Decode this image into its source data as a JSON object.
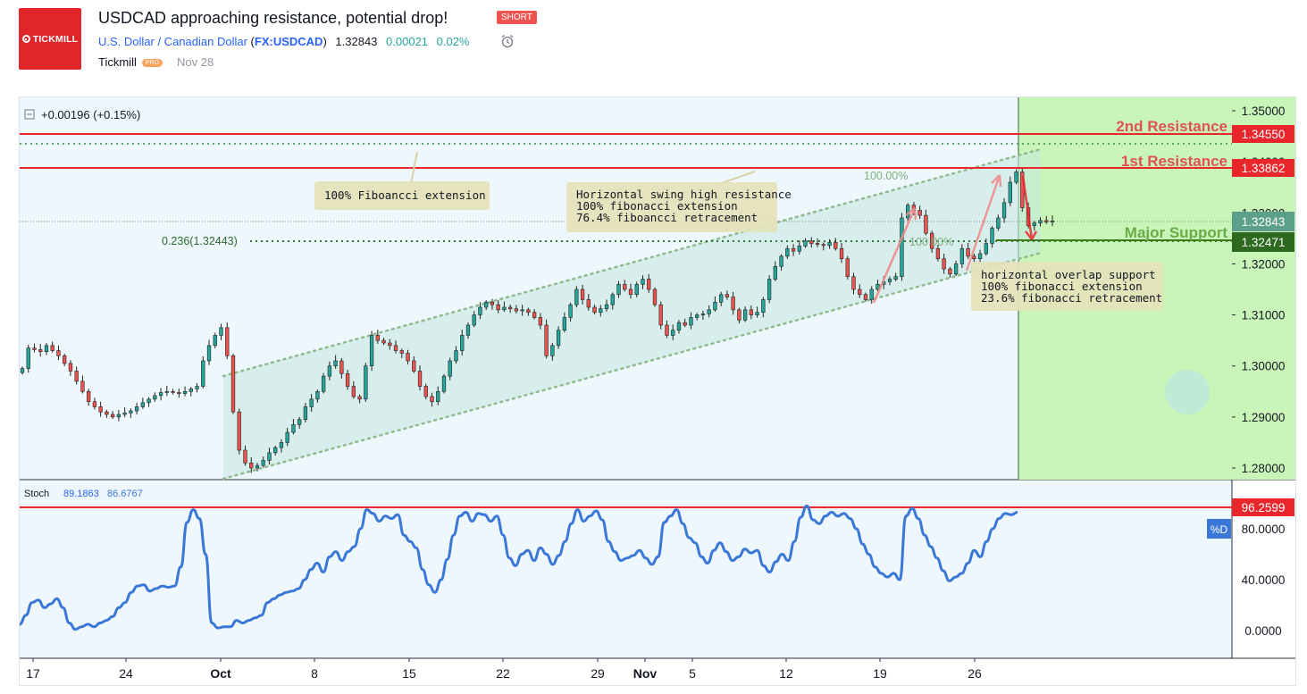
{
  "header": {
    "logo_text": "TICKMILL",
    "title": "USDCAD approaching resistance, potential drop!",
    "badge": "SHORT",
    "symbol_name": "U.S. Dollar / Canadian Dollar",
    "symbol_code": "FX:USDCAD",
    "price": "1.32843",
    "change": "0.00021",
    "change_pct": "0.02%",
    "author": "Tickmill",
    "author_badge": "PRO",
    "date": "Nov 28"
  },
  "colors": {
    "candle_up": "#26a69a",
    "candle_down": "#ef5350",
    "resistance": "#e8262b",
    "support": "#3c7a1a",
    "stoch_line": "#3a77d6",
    "target_zone": "#c9f5b8",
    "channel": "#8fbc8f"
  },
  "chart_data": [
    {
      "type": "candlestick",
      "symbol": "USDCAD",
      "change_label": "+0.00196 (+0.15%)",
      "x_ticks": [
        "17",
        "24",
        "Oct",
        "8",
        "15",
        "22",
        "29",
        "Nov",
        "5",
        "12",
        "19",
        "26"
      ],
      "y_ticks": [
        "1.35000",
        "1.34000",
        "1.33000",
        "1.32000",
        "1.31000",
        "1.30000",
        "1.29000",
        "1.28000"
      ],
      "ylim": [
        1.2755,
        1.3525
      ],
      "current_price_label": "1.32843",
      "levels": [
        {
          "name": "2nd Resistance",
          "value": 1.3455,
          "label": "1.34550",
          "color": "#e8262b"
        },
        {
          "name": "1st Resistance",
          "value": 1.33862,
          "label": "1.33862",
          "color": "#e8262b"
        },
        {
          "name": "Major Support",
          "value": 1.32471,
          "label": "1.32471",
          "color": "#3c7a1a"
        }
      ],
      "fib_labels": {
        "fib236": "0.236(1.32443)",
        "fib100_top": "100.00%",
        "fib100_mid": "100.00%"
      },
      "annotations": [
        {
          "text": "100% Fiboancci extension"
        },
        {
          "lines": [
            "Horizontal swing high resistance",
            "100% fibonacci extension",
            "76.4% fiboancci retracement"
          ]
        },
        {
          "lines": [
            "horizontal overlap support",
            "100% fibonacci extension",
            "23.6% fibonacci retracement"
          ]
        }
      ],
      "series_close": [
        1.2995,
        1.3035,
        1.3032,
        1.3028,
        1.304,
        1.303,
        1.302,
        1.3005,
        1.299,
        1.297,
        1.295,
        1.293,
        1.292,
        1.291,
        1.2905,
        1.29,
        1.2905,
        1.2908,
        1.2912,
        1.292,
        1.2928,
        1.2935,
        1.2942,
        1.2948,
        1.295,
        1.2948,
        1.2946,
        1.295,
        1.2955,
        1.296,
        1.301,
        1.304,
        1.306,
        1.3075,
        1.302,
        1.291,
        1.2835,
        1.281,
        1.28,
        1.2805,
        1.2815,
        1.283,
        1.284,
        1.285,
        1.287,
        1.2885,
        1.2895,
        1.292,
        1.2935,
        1.295,
        1.298,
        1.3,
        1.301,
        1.2985,
        1.296,
        1.294,
        1.2935,
        1.3,
        1.306,
        1.305,
        1.3045,
        1.304,
        1.303,
        1.3025,
        1.301,
        1.299,
        1.296,
        1.294,
        1.293,
        1.295,
        1.298,
        1.301,
        1.303,
        1.306,
        1.308,
        1.31,
        1.3115,
        1.3125,
        1.312,
        1.311,
        1.3115,
        1.3112,
        1.3108,
        1.311,
        1.3105,
        1.3095,
        1.308,
        1.302,
        1.304,
        1.307,
        1.3095,
        1.312,
        1.315,
        1.313,
        1.3115,
        1.3105,
        1.3112,
        1.312,
        1.314,
        1.316,
        1.315,
        1.314,
        1.316,
        1.317,
        1.315,
        1.312,
        1.308,
        1.306,
        1.307,
        1.3085,
        1.308,
        1.3095,
        1.31,
        1.3102,
        1.311,
        1.3125,
        1.314,
        1.3135,
        1.311,
        1.309,
        1.311,
        1.31,
        1.3105,
        1.313,
        1.317,
        1.3195,
        1.3215,
        1.323,
        1.3225,
        1.3235,
        1.3245,
        1.324,
        1.3238,
        1.3236,
        1.3242,
        1.323,
        1.321,
        1.3175,
        1.315,
        1.314,
        1.313,
        1.315,
        1.316,
        1.3165,
        1.317,
        1.3175,
        1.329,
        1.3315,
        1.3305,
        1.3295,
        1.326,
        1.323,
        1.321,
        1.319,
        1.318,
        1.32,
        1.323,
        1.3215,
        1.321,
        1.322,
        1.324,
        1.327,
        1.329,
        1.332,
        1.336,
        1.338,
        1.331,
        1.3275,
        1.328,
        1.3285,
        1.3282,
        1.3284
      ]
    },
    {
      "type": "line",
      "title": "Stoch",
      "values_label": [
        "89.1863",
        "86.6767"
      ],
      "y_ticks": [
        "80.0000",
        "40.0000",
        "0.0000"
      ],
      "level_label": "96.2599",
      "legend_badge": "%D",
      "ylim": [
        -15,
        103
      ],
      "series": [
        {
          "name": "%D",
          "values": [
            5,
            12,
            22,
            24,
            18,
            21,
            25,
            18,
            6,
            1,
            3,
            5,
            3,
            6,
            8,
            11,
            18,
            22,
            30,
            35,
            36,
            31,
            33,
            35,
            34,
            35,
            50,
            85,
            95,
            88,
            60,
            6,
            2,
            3,
            3,
            8,
            6,
            8,
            10,
            12,
            22,
            25,
            28,
            30,
            31,
            33,
            40,
            48,
            53,
            46,
            58,
            62,
            55,
            62,
            66,
            80,
            95,
            92,
            86,
            90,
            88,
            91,
            75,
            70,
            65,
            48,
            36,
            30,
            40,
            56,
            75,
            90,
            93,
            86,
            92,
            91,
            86,
            90,
            75,
            57,
            51,
            60,
            63,
            55,
            65,
            60,
            52,
            59,
            70,
            84,
            95,
            86,
            90,
            94,
            87,
            70,
            62,
            55,
            57,
            59,
            63,
            57,
            52,
            58,
            85,
            90,
            95,
            84,
            73,
            69,
            58,
            53,
            63,
            69,
            62,
            55,
            58,
            64,
            61,
            63,
            51,
            46,
            54,
            60,
            55,
            70,
            89,
            98,
            87,
            84,
            90,
            93,
            90,
            92,
            88,
            80,
            68,
            60,
            50,
            45,
            42,
            45,
            40,
            90,
            96,
            88,
            75,
            66,
            57,
            47,
            39,
            42,
            45,
            53,
            63,
            58,
            70,
            80,
            88,
            92,
            91,
            93
          ]
        }
      ]
    }
  ]
}
